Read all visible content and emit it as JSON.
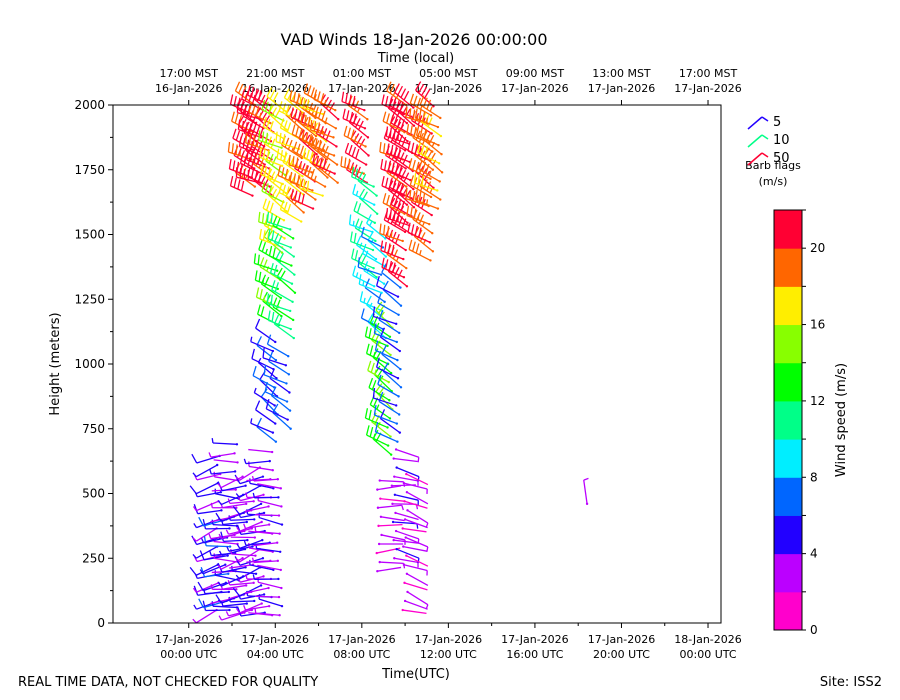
{
  "chart_data": {
    "type": "scatter",
    "subtype": "wind-barb-time-height",
    "title": "VAD Winds 18-Jan-2026 00:00:00",
    "xlabel_top": "Time (local)",
    "xlabel": "Time(UTC)",
    "ylabel": "Height (meters)",
    "xlim_hours_utc": [
      -3.5,
      24.6
    ],
    "ylim": [
      0,
      2000
    ],
    "y_ticks": [
      0,
      250,
      500,
      750,
      1000,
      1250,
      1500,
      1750,
      2000
    ],
    "x_ticks_bottom": [
      {
        "hour": 0,
        "line1": "17-Jan-2026",
        "line2": "00:00 UTC"
      },
      {
        "hour": 4,
        "line1": "17-Jan-2026",
        "line2": "04:00 UTC"
      },
      {
        "hour": 8,
        "line1": "17-Jan-2026",
        "line2": "08:00 UTC"
      },
      {
        "hour": 12,
        "line1": "17-Jan-2026",
        "line2": "12:00 UTC"
      },
      {
        "hour": 16,
        "line1": "17-Jan-2026",
        "line2": "16:00 UTC"
      },
      {
        "hour": 20,
        "line1": "17-Jan-2026",
        "line2": "20:00 UTC"
      },
      {
        "hour": 24,
        "line1": "18-Jan-2026",
        "line2": "00:00 UTC"
      }
    ],
    "x_ticks_top": [
      {
        "hour": 0,
        "line1": "17:00 MST",
        "line2": "16-Jan-2026"
      },
      {
        "hour": 4,
        "line1": "21:00 MST",
        "line2": "16-Jan-2026"
      },
      {
        "hour": 8,
        "line1": "01:00 MST",
        "line2": "17-Jan-2026"
      },
      {
        "hour": 12,
        "line1": "05:00 MST",
        "line2": "17-Jan-2026"
      },
      {
        "hour": 16,
        "line1": "09:00 MST",
        "line2": "17-Jan-2026"
      },
      {
        "hour": 20,
        "line1": "13:00 MST",
        "line2": "17-Jan-2026"
      },
      {
        "hour": 24,
        "line1": "17:00 MST",
        "line2": "17-Jan-2026"
      }
    ],
    "colorbar": {
      "label": "Wind speed (m/s)",
      "min": 0,
      "max": 22,
      "step": 2,
      "ticks": [
        0,
        4,
        8,
        12,
        16,
        20
      ],
      "colors": [
        "#ff00cc",
        "#bb00ff",
        "#2200ff",
        "#0066ff",
        "#00eeff",
        "#00ff88",
        "#00ff00",
        "#88ff00",
        "#ffee00",
        "#ff6600",
        "#ff0033"
      ]
    },
    "legend": {
      "title_line1": "Barb flags",
      "title_line2": "(m/s)",
      "entries": [
        {
          "value": "5",
          "color": "#2200ff"
        },
        {
          "value": "10",
          "color": "#00ff88"
        },
        {
          "value": "50",
          "color": "#ff0033"
        }
      ]
    },
    "barb_columns": [
      {
        "hour": 1.4,
        "from_m": 50,
        "to_m": 650,
        "speed": 4,
        "dir_deg": 250
      },
      {
        "hour": 1.8,
        "from_m": 50,
        "to_m": 400,
        "speed": 5,
        "dir_deg": 260
      },
      {
        "hour": 2.2,
        "from_m": 60,
        "to_m": 700,
        "speed": 3,
        "dir_deg": 270
      },
      {
        "hour": 2.6,
        "from_m": 40,
        "to_m": 580,
        "speed": 4,
        "dir_deg": 255
      },
      {
        "hour": 3.0,
        "from_m": 50,
        "to_m": 500,
        "speed": 3,
        "dir_deg": 265
      },
      {
        "hour": 3.4,
        "from_m": 40,
        "to_m": 620,
        "speed": 4,
        "dir_deg": 250
      },
      {
        "hour": 3.8,
        "from_m": 30,
        "to_m": 660,
        "speed": 3,
        "dir_deg": 270
      },
      {
        "hour": 4.2,
        "from_m": 30,
        "to_m": 560,
        "speed": 3,
        "dir_deg": 275
      },
      {
        "hour": 3.0,
        "from_m": 1650,
        "to_m": 2000,
        "speed": 20,
        "dir_deg": 300
      },
      {
        "hour": 3.4,
        "from_m": 1700,
        "to_m": 2000,
        "speed": 21,
        "dir_deg": 295
      },
      {
        "hour": 3.8,
        "from_m": 1650,
        "to_m": 2000,
        "speed": 20,
        "dir_deg": 300
      },
      {
        "hour": 4.0,
        "from_m": 700,
        "to_m": 1100,
        "speed": 5,
        "dir_deg": 305
      },
      {
        "hour": 4.2,
        "from_m": 1150,
        "to_m": 1450,
        "speed": 13,
        "dir_deg": 300
      },
      {
        "hour": 4.4,
        "from_m": 1450,
        "to_m": 2000,
        "speed": 16,
        "dir_deg": 300
      },
      {
        "hour": 4.6,
        "from_m": 750,
        "to_m": 1050,
        "speed": 6,
        "dir_deg": 300
      },
      {
        "hour": 4.8,
        "from_m": 1100,
        "to_m": 1550,
        "speed": 11,
        "dir_deg": 300
      },
      {
        "hour": 5.2,
        "from_m": 1550,
        "to_m": 2000,
        "speed": 17,
        "dir_deg": 300
      },
      {
        "hour": 5.8,
        "from_m": 1600,
        "to_m": 2000,
        "speed": 19,
        "dir_deg": 300
      },
      {
        "hour": 6.3,
        "from_m": 1650,
        "to_m": 2000,
        "speed": 18,
        "dir_deg": 300
      },
      {
        "hour": 6.8,
        "from_m": 1700,
        "to_m": 2000,
        "speed": 19,
        "dir_deg": 300
      },
      {
        "hour": 8.2,
        "from_m": 1700,
        "to_m": 2000,
        "speed": 20,
        "dir_deg": 300
      },
      {
        "hour": 8.6,
        "from_m": 1300,
        "to_m": 1700,
        "speed": 10,
        "dir_deg": 300
      },
      {
        "hour": 8.8,
        "from_m": 200,
        "to_m": 550,
        "speed": 2,
        "dir_deg": 90
      },
      {
        "hour": 9.0,
        "from_m": 1100,
        "to_m": 1500,
        "speed": 8,
        "dir_deg": 300
      },
      {
        "hour": 9.3,
        "from_m": 650,
        "to_m": 1150,
        "speed": 13,
        "dir_deg": 305
      },
      {
        "hour": 9.5,
        "from_m": 250,
        "to_m": 700,
        "speed": 3,
        "dir_deg": 100
      },
      {
        "hour": 9.7,
        "from_m": 700,
        "to_m": 1300,
        "speed": 6,
        "dir_deg": 300
      },
      {
        "hour": 10.0,
        "from_m": 50,
        "to_m": 600,
        "speed": 2,
        "dir_deg": 110
      },
      {
        "hour": 10.0,
        "from_m": 1300,
        "to_m": 2000,
        "speed": 20,
        "dir_deg": 300
      },
      {
        "hour": 10.3,
        "from_m": 1500,
        "to_m": 2000,
        "speed": 21,
        "dir_deg": 300
      },
      {
        "hour": 11.2,
        "from_m": 1400,
        "to_m": 2000,
        "speed": 19,
        "dir_deg": 300
      },
      {
        "hour": 11.6,
        "from_m": 1600,
        "to_m": 1950,
        "speed": 18,
        "dir_deg": 300
      },
      {
        "hour": 18.3,
        "from_m": 460,
        "to_m": 460,
        "speed": 2,
        "dir_deg": 340
      }
    ]
  },
  "footer": {
    "left": "REAL TIME DATA, NOT CHECKED FOR QUALITY",
    "right": "Site: ISS2"
  }
}
